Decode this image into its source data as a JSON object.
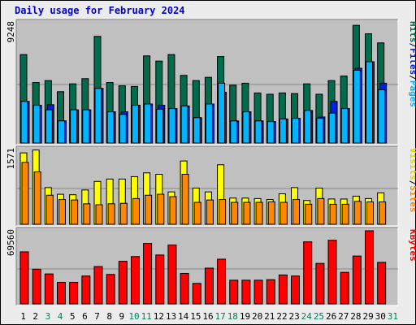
{
  "title": "Daily usage for February 2024",
  "colors": {
    "background": "#ECECEC",
    "panel": "#C0C0C0",
    "hits": "#006C4C",
    "files": "#0022DD",
    "pages": "#00B4FF",
    "visits": "#FFFF00",
    "sites": "#FF8800",
    "kbytes": "#FF0000",
    "weekend_label": "#00805C",
    "weekday_label": "#000000",
    "title": "#0000CC"
  },
  "legend": {
    "top": [
      {
        "text": "Pages",
        "color": "#00B4FF"
      },
      {
        "text": "/",
        "color": "#000000"
      },
      {
        "text": "Files",
        "color": "#0022DD"
      },
      {
        "text": "/",
        "color": "#000000"
      },
      {
        "text": "Hits",
        "color": "#006C4C"
      }
    ],
    "middle": [
      {
        "text": "Sites",
        "color": "#FF8800"
      },
      {
        "text": "/",
        "color": "#000000"
      },
      {
        "text": "Visits",
        "color": "#D8D800"
      }
    ],
    "bottom": [
      {
        "text": "KBytes",
        "color": "#FF0000"
      }
    ]
  },
  "chart_data": {
    "type": "bar",
    "title": "Daily usage for February 2024",
    "x": [
      "1",
      "2",
      "3",
      "4",
      "5",
      "6",
      "7",
      "8",
      "9",
      "10",
      "11",
      "12",
      "13",
      "14",
      "15",
      "16",
      "17",
      "18",
      "19",
      "20",
      "21",
      "22",
      "23",
      "24",
      "25",
      "26",
      "27",
      "28",
      "29",
      "30",
      "31"
    ],
    "weekend_days": [
      "3",
      "4",
      "10",
      "11",
      "17",
      "18",
      "24",
      "25",
      "31"
    ],
    "panels": [
      {
        "name": "hits-files-pages",
        "ymax_label": "9248",
        "ymax": 9248,
        "series": [
          {
            "name": "Hits",
            "values": [
              6800,
              4650,
              4800,
              3950,
              4550,
              4950,
              8200,
              4650,
              4400,
              4350,
              6700,
              6300,
              6800,
              5200,
              4800,
              5050,
              6650,
              4450,
              4600,
              3850,
              3750,
              3850,
              3800,
              4550,
              3750,
              4800,
              5150,
              9050,
              8400,
              7700,
              null
            ]
          },
          {
            "name": "Files",
            "values": [
              3200,
              2900,
              2950,
              1700,
              2550,
              2550,
              4200,
              2400,
              2400,
              2900,
              3000,
              2900,
              2650,
              2850,
              1950,
              3000,
              3900,
              1700,
              2400,
              1700,
              1650,
              1850,
              1900,
              2500,
              2000,
              3200,
              2650,
              5750,
              6250,
              4600,
              null
            ]
          },
          {
            "name": "Pages",
            "values": [
              3200,
              2900,
              2550,
              1700,
              2550,
              2550,
              4200,
              2400,
              2200,
              2900,
              3000,
              2600,
              2650,
              2850,
              1950,
              3000,
              4600,
              1700,
              2400,
              1700,
              1650,
              1850,
              1900,
              2500,
              1900,
              2300,
              2650,
              5600,
              6250,
              4100,
              null
            ]
          }
        ]
      },
      {
        "name": "visits-sites",
        "ymax_label": "1571",
        "ymax": 1571,
        "series": [
          {
            "name": "Visits",
            "values": [
              1500,
              1560,
              770,
              630,
              620,
              720,
              900,
              950,
              950,
              1000,
              1080,
              1050,
              680,
              1330,
              760,
              680,
              1250,
              550,
              550,
              540,
              520,
              640,
              770,
              500,
              760,
              530,
              530,
              590,
              540,
              660,
              null
            ]
          },
          {
            "name": "Sites",
            "values": [
              1300,
              1100,
              610,
              520,
              510,
              430,
              410,
              430,
              440,
              540,
              610,
              630,
              580,
              1050,
              460,
              510,
              520,
              460,
              460,
              460,
              470,
              460,
              520,
              420,
              540,
              420,
              420,
              480,
              470,
              470,
              null
            ]
          }
        ]
      },
      {
        "name": "kbytes",
        "ymax_label": "69560",
        "ymax": 69560,
        "series": [
          {
            "name": "KBytes",
            "values": [
              49500,
              33000,
              28500,
              20500,
              20500,
              26500,
              35500,
              28000,
              40500,
              45000,
              57500,
              46500,
              56000,
              29000,
              19500,
              34000,
              42500,
              22500,
              22500,
              22500,
              23000,
              27500,
              26500,
              59000,
              38500,
              60500,
              30000,
              45500,
              69560,
              39500,
              null
            ]
          }
        ]
      }
    ]
  }
}
